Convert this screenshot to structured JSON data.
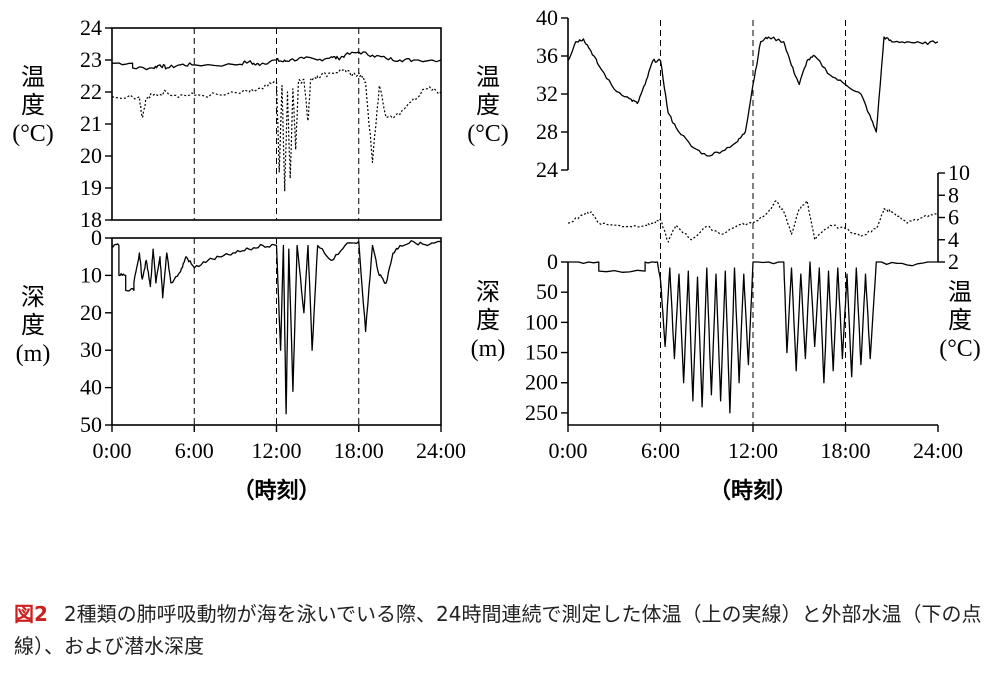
{
  "figure": {
    "caption_label": "図2",
    "caption_text": "2種類の肺呼吸動物が海を泳いでいる際、24時間連続で測定した体温（上の実線）と外部水温（下の点線）、および潜水深度"
  },
  "chart_data": [
    {
      "type": "line",
      "panel": "left-top",
      "ylabel": "温\n度\n(°C)",
      "ylim": [
        18,
        24
      ],
      "yticks": [
        18,
        19,
        20,
        21,
        22,
        23,
        24
      ],
      "xlim": [
        0,
        24
      ],
      "vlines": [
        6,
        12,
        18
      ],
      "series": [
        {
          "style": "solid",
          "x": [
            0,
            1.5,
            1.5,
            3,
            3.5,
            4,
            5,
            6,
            9,
            10,
            10.5,
            11,
            12,
            12.5,
            13,
            14,
            15,
            16,
            16.5,
            17,
            18,
            19,
            20,
            21,
            22,
            24
          ],
          "y": [
            22.9,
            22.9,
            22.75,
            22.75,
            22.85,
            22.75,
            22.85,
            22.85,
            22.85,
            22.95,
            22.85,
            22.9,
            23.0,
            22.95,
            23.0,
            23.05,
            23.0,
            23.1,
            23.05,
            23.15,
            23.25,
            23.15,
            23.05,
            23.0,
            23.0,
            23.0
          ]
        },
        {
          "style": "dotted",
          "x": [
            0,
            2,
            2.2,
            2.5,
            3,
            4,
            5,
            6,
            8,
            10,
            11,
            12,
            12.2,
            12.4,
            12.6,
            12.8,
            13,
            13.2,
            13.4,
            13.6,
            14,
            14.3,
            14.5,
            15,
            16,
            17,
            17.5,
            18,
            18.5,
            19,
            19.5,
            20,
            21,
            22,
            23,
            24
          ],
          "y": [
            21.85,
            21.85,
            21.2,
            21.8,
            21.9,
            22.0,
            21.9,
            21.9,
            21.9,
            22.0,
            22.1,
            22.3,
            19.5,
            22.2,
            18.9,
            22.0,
            19.3,
            22.1,
            20.2,
            22.3,
            22.4,
            21.1,
            22.4,
            22.5,
            22.6,
            22.7,
            22.5,
            22.6,
            22.3,
            19.8,
            22.2,
            21.2,
            21.3,
            21.8,
            22.1,
            22.0
          ]
        }
      ]
    },
    {
      "type": "line",
      "panel": "left-bottom",
      "ylabel": "深\n度\n(m)",
      "ylim": [
        0,
        50
      ],
      "yticks": [
        0,
        10,
        20,
        30,
        40,
        50
      ],
      "xlim": [
        0,
        24
      ],
      "xticks": [
        "0:00",
        "6:00",
        "12:00",
        "18:00",
        "24:00"
      ],
      "xlabel": "（時刻）",
      "vlines": [
        6,
        12,
        18
      ],
      "series": [
        {
          "style": "solid",
          "x": [
            0,
            0.5,
            0.5,
            1,
            1,
            1.6,
            1.6,
            2,
            2.2,
            2.5,
            2.8,
            3,
            3.2,
            3.5,
            3.7,
            4,
            4.3,
            5,
            5.4,
            6,
            7,
            8,
            9,
            10,
            11,
            12,
            12.3,
            12.5,
            12.7,
            12.9,
            13.2,
            13.5,
            14,
            14.3,
            14.6,
            15,
            16,
            17,
            18,
            18.5,
            19,
            19.5,
            20,
            20.5,
            21,
            22,
            23,
            24
          ],
          "y": [
            2,
            2,
            10,
            10,
            14,
            14,
            12,
            4,
            11,
            6,
            13,
            3,
            12,
            5,
            16,
            4,
            12,
            9,
            5,
            8,
            6,
            5,
            4,
            3,
            2,
            2,
            30,
            2,
            47,
            3,
            41,
            2,
            20,
            2,
            30,
            2,
            6,
            2,
            1,
            25,
            2,
            10,
            12,
            4,
            2,
            1,
            2,
            1
          ]
        }
      ]
    },
    {
      "type": "line",
      "panel": "right-top",
      "ylabel": "温\n度\n(°C)",
      "ylim": [
        24,
        40
      ],
      "yticks": [
        24,
        28,
        32,
        36,
        40
      ],
      "xlim": [
        0,
        24
      ],
      "vlines": [
        6,
        12,
        18
      ],
      "series": [
        {
          "style": "solid",
          "x": [
            0,
            0.5,
            1,
            1.5,
            2,
            3,
            4,
            4.5,
            5,
            5.5,
            6,
            6.5,
            7,
            8,
            9,
            10,
            11,
            11.5,
            12,
            12.5,
            13,
            14,
            14.5,
            15,
            15.5,
            16,
            17,
            18,
            19,
            19.5,
            20,
            20.5,
            21,
            22,
            23,
            24
          ],
          "y": [
            35.5,
            37.5,
            37.8,
            36.5,
            35,
            32.5,
            31.5,
            31,
            33,
            35.5,
            35.5,
            30,
            28.5,
            26.5,
            25.5,
            26,
            27,
            28,
            33,
            37.5,
            38,
            37.5,
            35,
            33,
            35.5,
            36,
            34,
            33,
            32,
            30,
            28,
            38,
            37.5,
            37.5,
            37.3,
            37.5
          ]
        }
      ]
    },
    {
      "type": "line",
      "panel": "right-middle",
      "ylabel": "温\n度\n(°C)",
      "ylim": [
        2,
        10
      ],
      "yticks": [
        2,
        4,
        6,
        8,
        10
      ],
      "xlim": [
        0,
        24
      ],
      "vlines": [
        6,
        12,
        18
      ],
      "series": [
        {
          "style": "dotted",
          "x": [
            0,
            1,
            1.5,
            2,
            3,
            4,
            5,
            5.5,
            6,
            6.5,
            7,
            8,
            9,
            10,
            11,
            12,
            13,
            13.5,
            14,
            14.5,
            15,
            15.5,
            16,
            17,
            18,
            19,
            20,
            20.5,
            21,
            22,
            23,
            24
          ],
          "y": [
            5.5,
            6.3,
            6.5,
            5.5,
            5.3,
            5.2,
            5.3,
            5.5,
            5.8,
            3.8,
            5.3,
            4,
            5.2,
            4.5,
            5.3,
            5.5,
            6.5,
            7.5,
            6.5,
            4.5,
            6.8,
            7.5,
            4,
            5.3,
            5,
            4.3,
            5,
            6.8,
            6.5,
            5.5,
            6,
            6.3
          ]
        }
      ]
    },
    {
      "type": "line",
      "panel": "right-bottom",
      "ylabel": "深\n度\n(m)",
      "ylim": [
        0,
        270
      ],
      "yticks": [
        0,
        50,
        100,
        150,
        200,
        250
      ],
      "xlim": [
        0,
        24
      ],
      "xticks": [
        "0:00",
        "6:00",
        "12:00",
        "18:00",
        "24:00"
      ],
      "xlabel": "（時刻）",
      "vlines": [
        6,
        12,
        18
      ],
      "series": [
        {
          "style": "solid",
          "x": [
            0,
            2,
            2,
            5,
            5,
            5.8,
            6,
            6.3,
            6.6,
            6.9,
            7.2,
            7.5,
            7.8,
            8.1,
            8.4,
            8.7,
            9,
            9.3,
            9.6,
            9.9,
            10.2,
            10.5,
            10.8,
            11.1,
            11.4,
            11.7,
            12,
            14,
            14.2,
            14.5,
            14.8,
            15.1,
            15.4,
            15.7,
            16,
            16.3,
            16.6,
            16.9,
            17.2,
            17.5,
            17.8,
            18.1,
            18.4,
            18.7,
            19,
            19.3,
            19.6,
            20,
            22,
            24
          ],
          "y": [
            0,
            0,
            15,
            15,
            0,
            0,
            30,
            140,
            10,
            160,
            20,
            200,
            15,
            230,
            25,
            240,
            10,
            220,
            20,
            230,
            15,
            250,
            10,
            200,
            20,
            170,
            0,
            0,
            150,
            10,
            180,
            20,
            160,
            0,
            140,
            10,
            200,
            15,
            180,
            10,
            160,
            20,
            190,
            10,
            170,
            20,
            160,
            0,
            5,
            0
          ]
        }
      ]
    }
  ]
}
